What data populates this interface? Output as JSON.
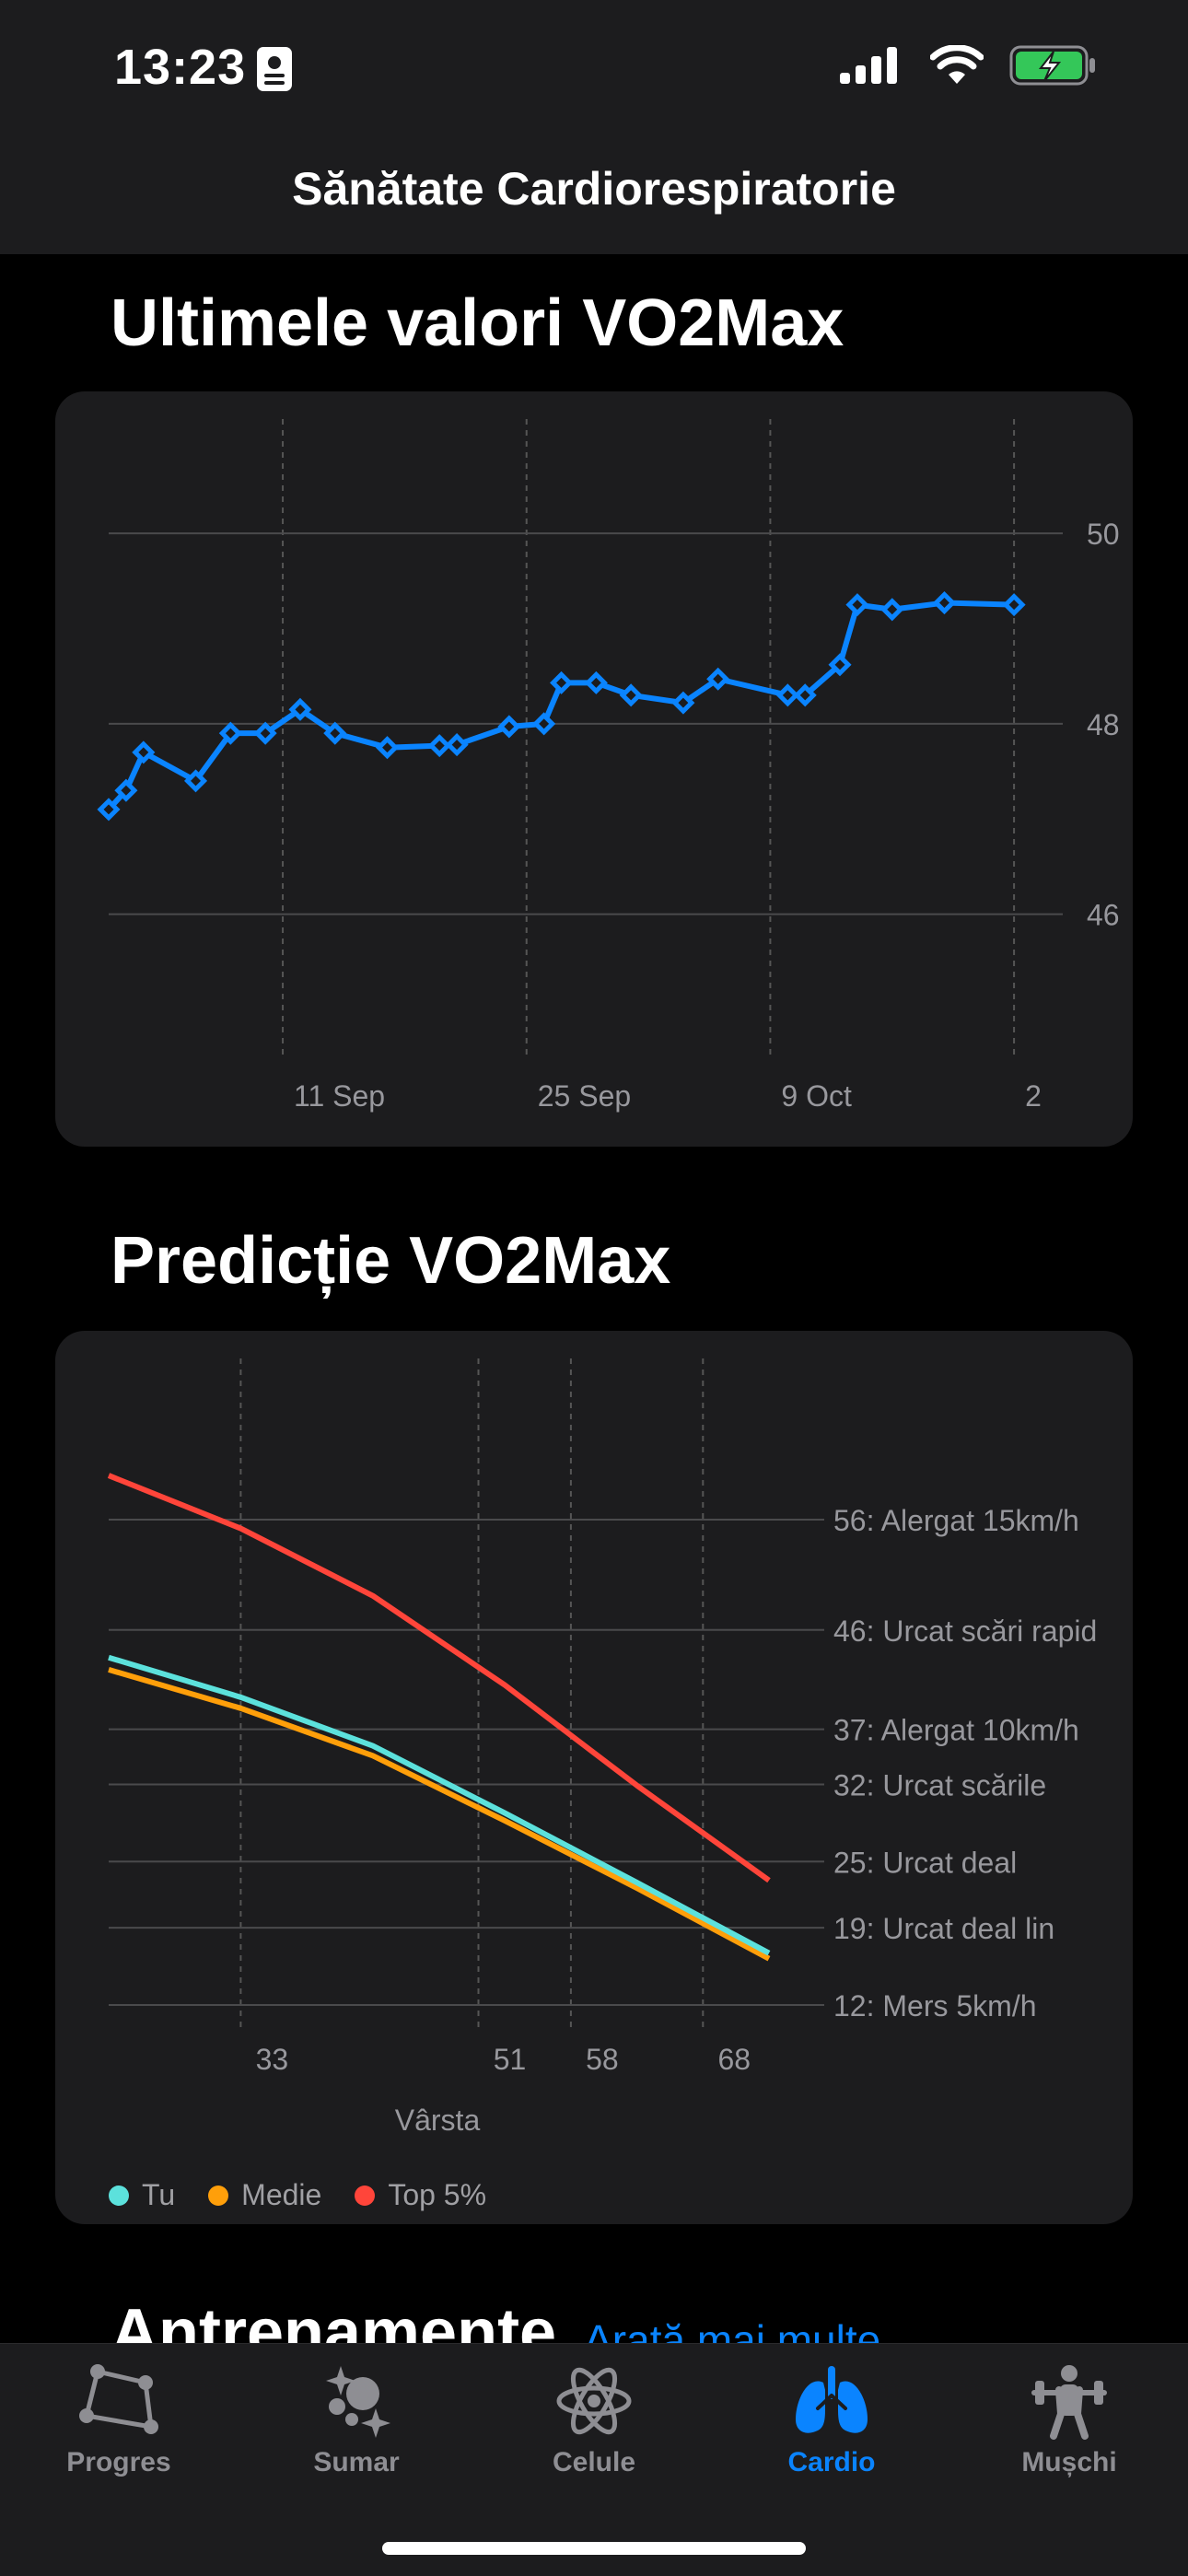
{
  "status": {
    "time": "13:23",
    "icons": [
      "id-card-icon",
      "cellular-icon",
      "wifi-icon",
      "battery-charging-icon"
    ]
  },
  "header": {
    "title": "Sănătate Cardiorespiratorie"
  },
  "vo2_section": {
    "title": "Ultimele valori VO2Max"
  },
  "prediction_section": {
    "title": "Predicție VO2Max"
  },
  "workouts": {
    "title": "Antrenamente",
    "show_more": "Arată mai multe"
  },
  "colors": {
    "accent": "#0a84ff",
    "tu": "#5ce1dc",
    "medie": "#ff9f0a",
    "top5": "#ff453a",
    "card": "#1c1c1e",
    "background": "#000000"
  },
  "chart_data": [
    {
      "type": "line",
      "title": "Ultimele valori VO2Max",
      "x_tick_labels": [
        "11 Sep",
        "25 Sep",
        "9 Oct",
        "2"
      ],
      "x_tick_days": [
        11,
        25,
        39,
        53
      ],
      "x_range_days": [
        1,
        54
      ],
      "y_ticks": [
        46,
        48,
        50
      ],
      "ylim": [
        45.3,
        51.2
      ],
      "series": [
        {
          "points": [
            [
              1,
              47.1
            ],
            [
              2,
              47.3
            ],
            [
              3,
              47.7
            ],
            [
              6,
              47.4
            ],
            [
              8,
              47.9
            ],
            [
              10,
              47.9
            ],
            [
              12,
              48.15
            ],
            [
              14,
              47.9
            ],
            [
              17,
              47.75
            ],
            [
              20,
              47.77
            ],
            [
              21,
              47.78
            ],
            [
              24,
              47.97
            ],
            [
              26,
              48.0
            ],
            [
              27,
              48.43
            ],
            [
              29,
              48.43
            ],
            [
              31,
              48.3
            ],
            [
              34,
              48.22
            ],
            [
              36,
              48.47
            ],
            [
              40,
              48.3
            ],
            [
              41,
              48.3
            ],
            [
              43,
              48.62
            ],
            [
              44,
              49.25
            ],
            [
              46,
              49.2
            ],
            [
              49,
              49.27
            ],
            [
              53,
              49.25
            ]
          ]
        }
      ]
    },
    {
      "type": "line",
      "title": "Predicție VO2Max",
      "xlabel": "Vârsta",
      "x_ticks": [
        33,
        51,
        58,
        68
      ],
      "xlim": [
        23,
        73
      ],
      "y_ticks": [
        12,
        19,
        25,
        32,
        37,
        46,
        56
      ],
      "y_tick_labels": [
        "12: Mers 5km/h",
        "19: Urcat deal lin",
        "25: Urcat deal",
        "32: Urcat scările",
        "37: Alergat 10km/h",
        "46: Urcat scări rapid",
        "56: Alergat 15km/h"
      ],
      "ylim": [
        12,
        56
      ],
      "legend": [
        {
          "name": "Tu",
          "color": "#5ce1dc"
        },
        {
          "name": "Medie",
          "color": "#ff9f0a"
        },
        {
          "name": "Top 5%",
          "color": "#ff453a"
        }
      ],
      "series": [
        {
          "name": "Tu",
          "color": "#5ce1dc",
          "x": [
            23,
            33,
            43,
            53,
            63,
            73
          ],
          "y": [
            43.5,
            39.9,
            35.5,
            29.4,
            23.1,
            16.7
          ]
        },
        {
          "name": "Medie",
          "color": "#ff9f0a",
          "x": [
            23,
            33,
            43,
            53,
            63,
            73
          ],
          "y": [
            42.4,
            38.9,
            34.6,
            28.7,
            22.6,
            16.2
          ]
        },
        {
          "name": "Top 5%",
          "color": "#ff453a",
          "x": [
            23,
            33,
            43,
            53,
            63,
            73
          ],
          "y": [
            60.0,
            55.2,
            49.1,
            41.0,
            31.9,
            23.3
          ]
        }
      ]
    }
  ],
  "tabs": [
    {
      "label": "Progres",
      "icon": "progress-icon"
    },
    {
      "label": "Sumar",
      "icon": "sparkles-icon"
    },
    {
      "label": "Celule",
      "icon": "atom-icon"
    },
    {
      "label": "Cardio",
      "icon": "lungs-icon",
      "active": true
    },
    {
      "label": "Mușchi",
      "icon": "weightlifter-icon"
    }
  ]
}
